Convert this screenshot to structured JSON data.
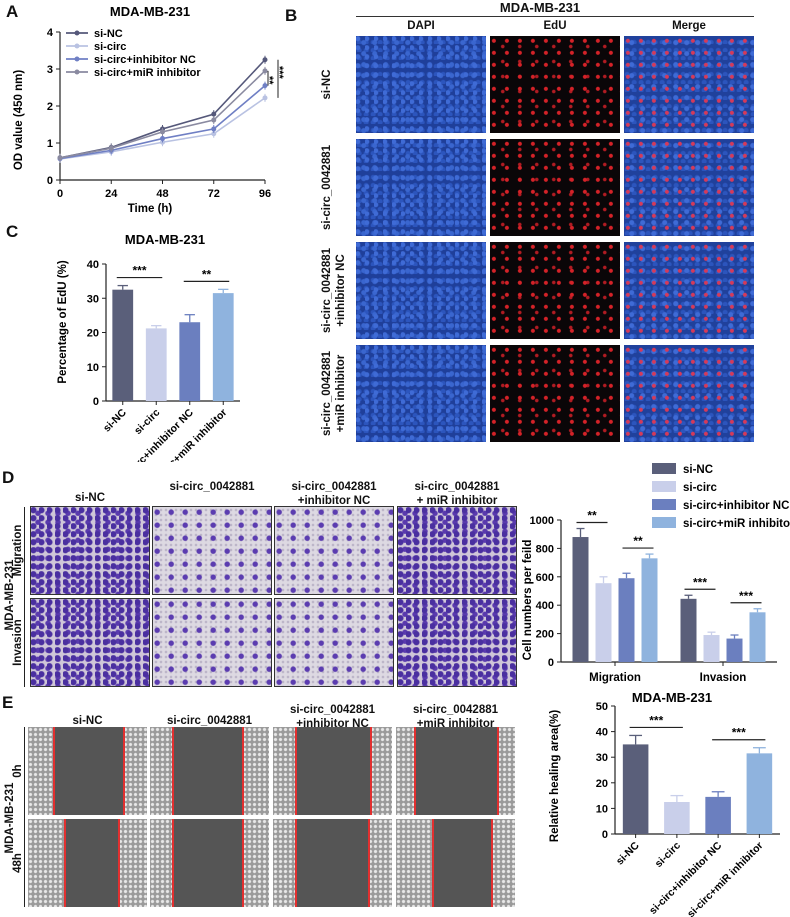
{
  "panels": {
    "A": {
      "letter": "A"
    },
    "B": {
      "letter": "B",
      "title": "MDA-MB-231",
      "columns": [
        "DAPI",
        "EdU",
        "Merge"
      ],
      "rows": [
        "si-NC",
        "si-circ_0042881",
        "si-circ_0042881\n+inhibitor NC",
        "si-circ_0042881\n+miR inhibitor"
      ]
    },
    "C": {
      "letter": "C"
    },
    "D": {
      "letter": "D",
      "columns": [
        "si-NC",
        "si-circ_0042881",
        "si-circ_0042881\n+inhibitor NC",
        "si-circ_0042881\n+ miR inhibitor"
      ],
      "rows": [
        "Migration",
        "Invasion"
      ],
      "side_label": "MDA-MB-231"
    },
    "E": {
      "letter": "E",
      "columns": [
        "si-NC",
        "si-circ_0042881",
        "si-circ_0042881\n+inhibitor NC",
        "si-circ_0042881\n+miR inhibitor"
      ],
      "rows": [
        "0h",
        "48h"
      ],
      "side_label": "MDA-MB-231"
    }
  },
  "colors": {
    "si-NC": "#5a5f7a",
    "si-circ": "#c9cfea",
    "si-circ+inhibitor NC": "#6b7fbf",
    "si-circ+miR inhibitor": "#8fb3de",
    "lineA_siNC": "#55587a",
    "lineA_sicirc": "#b9c2e2",
    "lineA_inhNC": "#6f7fc4",
    "lineA_miR": "#8a8aa0"
  },
  "chart_data": [
    {
      "id": "A",
      "type": "line",
      "title": "MDA-MB-231",
      "xlabel": "Time (h)",
      "ylabel": "OD value (450 nm)",
      "x": [
        0,
        24,
        48,
        72,
        96
      ],
      "xlim": [
        0,
        96
      ],
      "ylim": [
        0,
        4
      ],
      "yticks": [
        0,
        1,
        2,
        3,
        4
      ],
      "series": [
        {
          "name": "si-NC",
          "values": [
            0.6,
            0.88,
            1.38,
            1.78,
            3.25
          ]
        },
        {
          "name": "si-circ",
          "values": [
            0.57,
            0.76,
            1.02,
            1.25,
            2.22
          ]
        },
        {
          "name": "si-circ+inhibitor NC",
          "values": [
            0.58,
            0.8,
            1.12,
            1.38,
            2.55
          ]
        },
        {
          "name": "si-circ+miR inhibitor",
          "values": [
            0.6,
            0.86,
            1.3,
            1.62,
            2.95
          ]
        }
      ],
      "annotations": [
        "**",
        "***"
      ],
      "legend": "top-left"
    },
    {
      "id": "C",
      "type": "bar",
      "title": "MDA-MB-231",
      "ylabel": "Percentage of EdU (%)",
      "ylim": [
        0,
        40
      ],
      "yticks": [
        0,
        10,
        20,
        30,
        40
      ],
      "categories": [
        "si-NC",
        "si-circ",
        "si-circ+inhibitor NC",
        "si-circ+miR inhibitor"
      ],
      "values": [
        32.5,
        21.2,
        23,
        31.5
      ],
      "errors": [
        1.2,
        0.8,
        2.2,
        1.1
      ],
      "annotations": [
        {
          "pair": [
            0,
            1
          ],
          "label": "***"
        },
        {
          "pair": [
            2,
            3
          ],
          "label": "**"
        }
      ]
    },
    {
      "id": "D",
      "type": "bar",
      "ylabel": "Cell numbers per feild",
      "ylim": [
        0,
        1000
      ],
      "yticks": [
        0,
        200,
        400,
        600,
        800,
        1000
      ],
      "groups": [
        "Migration",
        "Invasion"
      ],
      "series": [
        {
          "name": "si-NC",
          "values": [
            880,
            445
          ],
          "errors": [
            60,
            25
          ]
        },
        {
          "name": "si-circ",
          "values": [
            555,
            190
          ],
          "errors": [
            45,
            20
          ]
        },
        {
          "name": "si-circ+inhibitor NC",
          "values": [
            590,
            165
          ],
          "errors": [
            35,
            25
          ]
        },
        {
          "name": "si-circ+miR inhibitor",
          "values": [
            730,
            350
          ],
          "errors": [
            30,
            25
          ]
        }
      ],
      "annotations": [
        {
          "group": 0,
          "pair": [
            0,
            1
          ],
          "label": "**"
        },
        {
          "group": 0,
          "pair": [
            2,
            3
          ],
          "label": "**"
        },
        {
          "group": 1,
          "pair": [
            0,
            1
          ],
          "label": "***"
        },
        {
          "group": 1,
          "pair": [
            2,
            3
          ],
          "label": "***"
        }
      ],
      "legend": "top"
    },
    {
      "id": "E",
      "type": "bar",
      "title": "MDA-MB-231",
      "ylabel": "Relative healing area(%)",
      "ylim": [
        0,
        50
      ],
      "yticks": [
        0,
        10,
        20,
        30,
        40,
        50
      ],
      "categories": [
        "si-NC",
        "si-circ",
        "si-circ+inhibitor NC",
        "si-circ+miR inhibitor"
      ],
      "values": [
        35,
        12.5,
        14.5,
        31.5
      ],
      "errors": [
        3.5,
        2.5,
        2,
        2.2
      ],
      "annotations": [
        {
          "pair": [
            0,
            1
          ],
          "label": "***"
        },
        {
          "pair": [
            2,
            3
          ],
          "label": "***"
        }
      ]
    }
  ]
}
